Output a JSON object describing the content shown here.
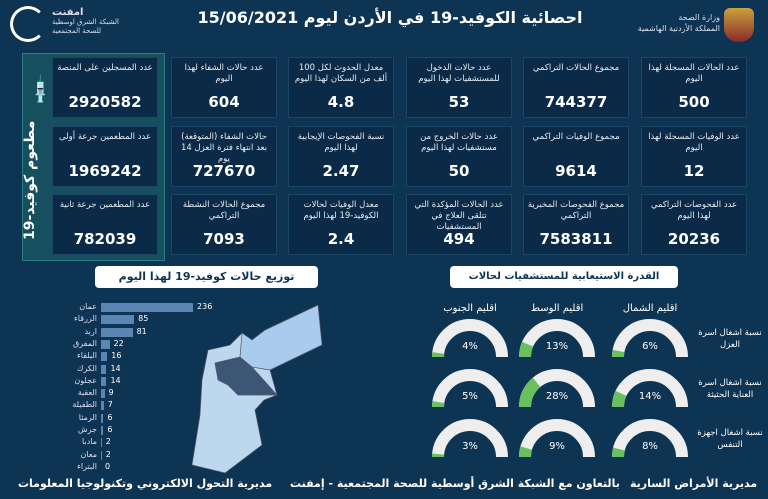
{
  "header": {
    "title": "احصائية الكوفيد-19 في الأردن ليوم 15/06/2021",
    "ministry_line1": "وزارة الصحة",
    "ministry_line2": "المملكة الأردنية الهاشمية",
    "emphnet_name": "امفنت",
    "emphnet_line1": "الشبكة الشرق اوسطية",
    "emphnet_line2": "للصحة المجتمعية"
  },
  "vaccine": {
    "title": "مطعوم كوفيد-19",
    "cards": [
      {
        "label": "عدد المسجلين على المنصة",
        "value": "2920582"
      },
      {
        "label": "عدد المطعمين جرعة أولى",
        "value": "1969242"
      },
      {
        "label": "عدد المطعمين جرعة ثانية",
        "value": "782039"
      }
    ]
  },
  "stats": [
    [
      {
        "label": "عدد الحالات المسجلة لهذا اليوم",
        "value": "500"
      },
      {
        "label": "مجموع الحالات التراكمي",
        "value": "744377"
      },
      {
        "label": "عدد حالات الدخول للمستشفيات لهذا اليوم",
        "value": "53"
      },
      {
        "label": "معدل الحدوث لكل 100 ألف من السكان لهذا اليوم",
        "value": "4.8"
      },
      {
        "label": "عدد حالات الشفاء لهذا اليوم",
        "value": "604"
      }
    ],
    [
      {
        "label": "عدد الوفيات المسجلة لهذا اليوم",
        "value": "12"
      },
      {
        "label": "مجموع الوفيات التراكمي",
        "value": "9614"
      },
      {
        "label": "عدد حالات الخروج من مستشفيات لهذا اليوم",
        "value": "50"
      },
      {
        "label": "نسبة الفحوصات الإيجابية لهذا اليوم",
        "value": "2.47"
      },
      {
        "label": "حالات الشفاء (المتوقعة) بعد انتهاء فترة العزل 14 يوم",
        "value": "727670"
      }
    ],
    [
      {
        "label": "عدد الفحوصات التراكمي لهذا اليوم",
        "value": "20236"
      },
      {
        "label": "مجموع الفحوصات المخبرية التراكمي",
        "value": "7583811"
      },
      {
        "label": "عدد الحالات المؤكدة التي تتلقى العلاج في المستشفيات",
        "value": "494"
      },
      {
        "label": "معدل الوفيات لحالات الكوفيد-19 لهذا اليوم",
        "value": "2.4"
      },
      {
        "label": "مجموع الحالات النشطة التراكمي",
        "value": "7093"
      }
    ]
  ],
  "chart_data": [
    {
      "type": "bar",
      "orientation": "horizontal",
      "title": "توزيع حالات كوفيد-19 لهذا اليوم",
      "categories": [
        "عمان",
        "الزرقاء",
        "اربد",
        "المفرق",
        "البلقاء",
        "الكرك",
        "عجلون",
        "العقبة",
        "الطفيلة",
        "الرمثا",
        "جرش",
        "مادبا",
        "معان",
        "البتراء"
      ],
      "values": [
        236,
        85,
        81,
        22,
        16,
        14,
        14,
        9,
        7,
        6,
        6,
        2,
        2,
        0
      ],
      "bar_color": "#5b86b4"
    },
    {
      "type": "gauge",
      "title": "القدرة الاستيعابية للمستشفيات لحالات كوفيد-19",
      "regions": [
        "اقليم الشمال",
        "اقليم الوسط",
        "اقليم الجنوب"
      ],
      "rows": [
        {
          "label": "نسبة اشغال اسرة العزل",
          "values": [
            6,
            13,
            4
          ]
        },
        {
          "label": "نسبة اشغال اسرة العناية الحثيثة",
          "values": [
            14,
            28,
            5
          ]
        },
        {
          "label": "نسبة اشغال اجهزة التنفس",
          "values": [
            8,
            9,
            3
          ]
        }
      ],
      "unit": "%",
      "fill_color": "#6abf5e",
      "track_color": "#eeeeee"
    }
  ],
  "footer": {
    "left": "مديرية التحول الالكتروني وتكنولوجيا المعلومات",
    "middle": "بالتعاون مع الشبكة الشرق أوسطية للصحة المجتمعية - إمفنت",
    "right": "مديرية الأمراض السارية"
  }
}
